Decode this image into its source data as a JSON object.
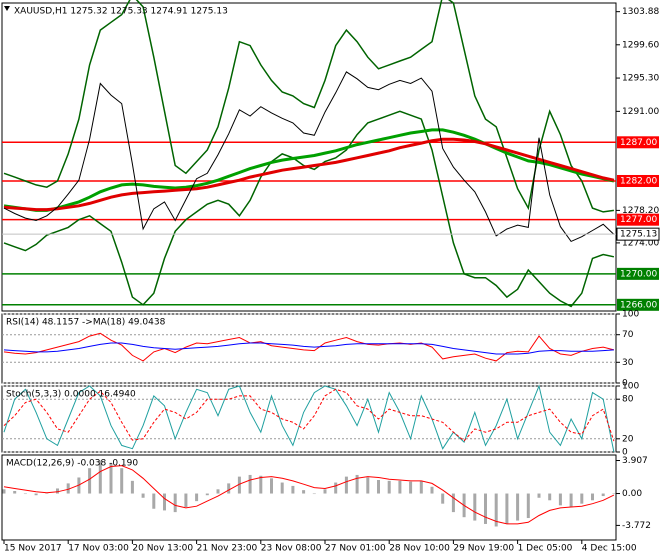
{
  "chart_data": [
    {
      "type": "line",
      "title": "XAUUSD,H1 1275.32 1275.33 1274.91 1275.13",
      "ylim": [
        1265.2,
        1305.0
      ],
      "yticks": [
        1303.88,
        {
          "value": 1299.6,
          "label": "1299.60"
        },
        {
          "value": 1295.3,
          "label": "1295.30"
        },
        {
          "value": 1291,
          "label": "1291.00"
        },
        {
          "value": 1278.2,
          "label": "1278.20"
        },
        {
          "value": 1274,
          "label": "1274.00"
        }
      ],
      "grid": false,
      "levels": [
        {
          "value": 1287,
          "label": "1287.00",
          "color": "#ff0000"
        },
        {
          "value": 1282,
          "label": "1282.00",
          "color": "#ff0000"
        },
        {
          "value": 1277,
          "label": "1277.00",
          "color": "#ff0000"
        },
        {
          "value": 1270,
          "label": "1270.00",
          "color": "#008000"
        },
        {
          "value": 1266,
          "label": "1266.00",
          "color": "#008000"
        }
      ],
      "last_price": 1275.13,
      "series": [
        {
          "color": "#006400",
          "width": 1.5,
          "values": [
            1283.0,
            1282.5,
            1282.0,
            1281.5,
            1281.2,
            1282.0,
            1285.5,
            1290.0,
            1297.0,
            1301.5,
            1302.5,
            1303.5,
            1306.0,
            1304.5,
            1298.0,
            1291.0,
            1284.0,
            1283.0,
            1284.5,
            1286.0,
            1289.0,
            1294.0,
            1300.0,
            1299.5,
            1297.0,
            1295.0,
            1293.5,
            1293.0,
            1292.0,
            1291.5,
            1295.0,
            1299.5,
            1301.5,
            1300.0,
            1298.0,
            1296.5,
            1297.0,
            1297.5,
            1298.0,
            1299.0,
            1300.0,
            1306.0,
            1305.0,
            1299.0,
            1293.0,
            1290.0,
            1289.0,
            1285.0,
            1281.0,
            1278.5,
            1286.0,
            1291.0,
            1288.0,
            1284.0,
            1282.0,
            1278.5,
            1278.0,
            1278.2
          ]
        },
        {
          "color": "#006400",
          "width": 1.5,
          "values": [
            1274.0,
            1273.5,
            1273.0,
            1273.8,
            1275.0,
            1275.5,
            1276.0,
            1277.0,
            1277.5,
            1276.5,
            1275.5,
            1271.5,
            1267.0,
            1266.0,
            1267.5,
            1272.0,
            1275.5,
            1277.0,
            1278.0,
            1279.0,
            1279.5,
            1279.0,
            1277.5,
            1279.5,
            1282.5,
            1284.5,
            1285.5,
            1285.0,
            1284.0,
            1283.5,
            1284.5,
            1285.0,
            1286.0,
            1288.0,
            1289.5,
            1290.0,
            1290.5,
            1291.0,
            1290.5,
            1290.0,
            1286.0,
            1280.0,
            1274.0,
            1270.0,
            1269.5,
            1269.5,
            1268.5,
            1267.0,
            1268.0,
            1270.5,
            1269.0,
            1267.5,
            1266.5,
            1265.8,
            1267.5,
            1272.0,
            1272.5,
            1272.2
          ]
        },
        {
          "color": "#00a000",
          "width": 3,
          "values": [
            1278.8,
            1278.6,
            1278.4,
            1278.2,
            1278.2,
            1278.5,
            1278.9,
            1279.3,
            1279.9,
            1280.6,
            1281.1,
            1281.5,
            1281.6,
            1281.5,
            1281.3,
            1281.2,
            1281.1,
            1281.2,
            1281.4,
            1281.7,
            1282.1,
            1282.6,
            1283.1,
            1283.6,
            1284.0,
            1284.4,
            1284.7,
            1284.9,
            1285.1,
            1285.3,
            1285.6,
            1285.9,
            1286.3,
            1286.7,
            1287.0,
            1287.3,
            1287.6,
            1287.9,
            1288.2,
            1288.4,
            1288.6,
            1288.6,
            1288.3,
            1287.9,
            1287.4,
            1286.8,
            1286.2,
            1285.6,
            1285.1,
            1284.6,
            1284.4,
            1284.1,
            1283.7,
            1283.3,
            1282.9,
            1282.6,
            1282.3,
            1282.0
          ]
        },
        {
          "color": "#e00000",
          "width": 3,
          "values": [
            1278.6,
            1278.5,
            1278.4,
            1278.3,
            1278.3,
            1278.4,
            1278.6,
            1278.8,
            1279.1,
            1279.5,
            1279.9,
            1280.2,
            1280.4,
            1280.5,
            1280.6,
            1280.7,
            1280.8,
            1280.9,
            1281.0,
            1281.2,
            1281.5,
            1281.8,
            1282.1,
            1282.5,
            1282.8,
            1283.1,
            1283.4,
            1283.6,
            1283.8,
            1284.0,
            1284.2,
            1284.4,
            1284.7,
            1285.0,
            1285.3,
            1285.6,
            1285.9,
            1286.3,
            1286.6,
            1286.9,
            1287.2,
            1287.4,
            1287.4,
            1287.3,
            1287.1,
            1286.8,
            1286.4,
            1286.0,
            1285.6,
            1285.2,
            1284.8,
            1284.4,
            1284.0,
            1283.6,
            1283.2,
            1282.8,
            1282.4,
            1282.1
          ]
        },
        {
          "color": "#000000",
          "width": 1,
          "values": [
            1278.5,
            1277.8,
            1277.2,
            1276.9,
            1277.5,
            1278.6,
            1280.3,
            1282.1,
            1287.4,
            1294.6,
            1293.1,
            1292.0,
            1284.2,
            1275.8,
            1278.4,
            1279.3,
            1276.9,
            1279.6,
            1282.3,
            1283.0,
            1285.4,
            1288.1,
            1291.2,
            1290.4,
            1291.6,
            1290.8,
            1290.1,
            1289.5,
            1288.2,
            1287.9,
            1290.9,
            1293.4,
            1296.1,
            1295.2,
            1294.1,
            1293.8,
            1294.5,
            1295.0,
            1294.6,
            1295.3,
            1293.6,
            1286.2,
            1283.8,
            1282.1,
            1280.6,
            1278.0,
            1274.9,
            1275.8,
            1276.3,
            1276.0,
            1287.6,
            1280.2,
            1276.1,
            1274.2,
            1274.8,
            1275.6,
            1276.4,
            1275.1
          ]
        }
      ]
    },
    {
      "type": "line",
      "title": "RSI(14) 48.1157 ->MA(18) 49.0438",
      "ylim": [
        0,
        100
      ],
      "yticks": [
        0,
        30,
        70,
        100
      ],
      "grid": true,
      "series": [
        {
          "color": "#ff0000",
          "width": 1,
          "values": [
            45,
            43,
            42,
            44,
            48,
            52,
            56,
            60,
            68,
            72,
            62,
            55,
            40,
            32,
            45,
            50,
            44,
            52,
            58,
            57,
            60,
            63,
            66,
            58,
            60,
            54,
            52,
            50,
            48,
            47,
            58,
            62,
            66,
            60,
            56,
            55,
            57,
            58,
            56,
            58,
            52,
            35,
            38,
            40,
            42,
            36,
            32,
            44,
            46,
            45,
            68,
            50,
            42,
            40,
            46,
            50,
            52,
            48
          ]
        },
        {
          "color": "#0000ff",
          "width": 1,
          "values": [
            48,
            47,
            46,
            45,
            45,
            46,
            48,
            50,
            53,
            56,
            58,
            58,
            56,
            53,
            51,
            50,
            49,
            50,
            51,
            52,
            53,
            55,
            57,
            58,
            58,
            57,
            56,
            55,
            53,
            52,
            53,
            54,
            56,
            57,
            57,
            57,
            57,
            57,
            57,
            57,
            56,
            53,
            50,
            48,
            46,
            44,
            42,
            42,
            42,
            43,
            46,
            47,
            47,
            46,
            46,
            46,
            47,
            48
          ]
        }
      ]
    },
    {
      "type": "line",
      "title": "Stoch(5,3,3) 0.0000 16.4940",
      "ylim": [
        0,
        100
      ],
      "yticks": [
        0,
        20,
        80,
        100
      ],
      "grid": true,
      "series": [
        {
          "color": "#20a0a0",
          "width": 1,
          "values": [
            30,
            80,
            95,
            60,
            20,
            10,
            50,
            90,
            100,
            85,
            40,
            10,
            5,
            40,
            85,
            70,
            20,
            60,
            95,
            90,
            55,
            95,
            100,
            60,
            30,
            85,
            40,
            10,
            60,
            90,
            100,
            95,
            70,
            40,
            80,
            30,
            90,
            60,
            20,
            85,
            50,
            5,
            30,
            15,
            60,
            10,
            40,
            80,
            20,
            60,
            100,
            30,
            10,
            50,
            20,
            90,
            80,
            0
          ]
        },
        {
          "color": "#ff0000",
          "width": 1,
          "dash": true,
          "values": [
            40,
            55,
            75,
            80,
            60,
            35,
            30,
            55,
            80,
            92,
            75,
            45,
            18,
            20,
            45,
            65,
            60,
            50,
            60,
            80,
            80,
            80,
            85,
            85,
            65,
            60,
            50,
            45,
            35,
            55,
            85,
            95,
            90,
            70,
            65,
            50,
            65,
            60,
            55,
            55,
            50,
            45,
            30,
            17,
            35,
            30,
            35,
            45,
            45,
            55,
            60,
            65,
            45,
            30,
            27,
            55,
            65,
            16.5
          ]
        }
      ]
    },
    {
      "type": "macd",
      "title": "MACD(12,26,9) -0.038 -0.190",
      "ylim": [
        -5.5,
        4.56
      ],
      "yticks": [
        3.907,
        {
          "value": 0,
          "label": "0.00"
        },
        -3.772
      ],
      "grid": false,
      "categories": [
        "15 Nov 2017",
        null,
        null,
        null,
        null,
        null,
        "17 Nov 03:00",
        null,
        null,
        null,
        null,
        null,
        "20 Nov 13:00",
        null,
        null,
        null,
        null,
        null,
        "21 Nov 23:00",
        null,
        null,
        null,
        null,
        null,
        "23 Nov 08:00",
        null,
        null,
        null,
        null,
        null,
        "27 Nov 01:00",
        null,
        null,
        null,
        null,
        null,
        "28 Nov 10:00",
        null,
        null,
        null,
        null,
        null,
        "29 Nov 19:00",
        null,
        null,
        null,
        null,
        null,
        "1 Dec 05:00",
        null,
        null,
        null,
        null,
        null,
        "4 Dec 15:00",
        null,
        null,
        null
      ],
      "series": [
        {
          "style": "bar",
          "color": "#a8a8a8",
          "values": [
            0.5,
            0.3,
            0.0,
            -0.2,
            0.1,
            0.6,
            1.2,
            1.9,
            3.0,
            3.9,
            3.6,
            3.0,
            1.5,
            -0.5,
            -1.8,
            -2.0,
            -2.2,
            -1.6,
            -0.9,
            -0.2,
            0.5,
            1.2,
            2.0,
            2.2,
            2.1,
            1.8,
            1.3,
            0.9,
            0.4,
            0.0,
            0.5,
            1.3,
            2.0,
            2.2,
            1.9,
            1.6,
            1.5,
            1.5,
            1.4,
            1.5,
            0.8,
            -1.2,
            -2.2,
            -2.8,
            -3.2,
            -3.6,
            -3.9,
            -3.6,
            -3.2,
            -2.9,
            -0.5,
            -0.8,
            -1.4,
            -1.6,
            -1.2,
            -0.8,
            -0.3,
            -0.038
          ]
        },
        {
          "style": "line",
          "color": "#ff0000",
          "width": 1,
          "values": [
            0.8,
            0.6,
            0.4,
            0.2,
            0.1,
            0.2,
            0.5,
            1.0,
            1.7,
            2.6,
            3.2,
            3.3,
            2.8,
            1.8,
            0.6,
            -0.6,
            -1.4,
            -1.7,
            -1.5,
            -0.9,
            -0.3,
            0.4,
            1.1,
            1.6,
            1.9,
            2.0,
            1.8,
            1.5,
            1.1,
            0.7,
            0.6,
            0.9,
            1.4,
            1.8,
            2.0,
            1.9,
            1.7,
            1.6,
            1.5,
            1.5,
            1.2,
            0.4,
            -0.5,
            -1.4,
            -2.2,
            -2.8,
            -3.3,
            -3.6,
            -3.6,
            -3.4,
            -2.6,
            -2.0,
            -1.7,
            -1.6,
            -1.5,
            -1.2,
            -0.8,
            -0.19
          ]
        }
      ]
    }
  ]
}
